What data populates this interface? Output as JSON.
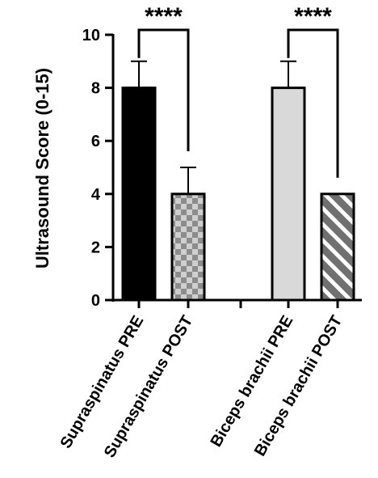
{
  "chart_data": {
    "type": "bar",
    "ylabel": "Ultrasound  Score (0-15)",
    "ylim": [
      0,
      10
    ],
    "yticks": [
      0,
      2,
      4,
      6,
      8,
      10
    ],
    "grid": false,
    "categories": [
      "Supraspinatus PRE",
      "Supraspinatus POST",
      "Biceps brachii PRE",
      "Biceps brachii POST"
    ],
    "values": [
      8,
      4,
      8,
      4
    ],
    "errors": [
      1,
      1,
      1,
      0
    ],
    "bar_styles": [
      {
        "fill": "#000000",
        "pattern": "solid"
      },
      {
        "fill": "#8c8c8c",
        "pattern": "checker"
      },
      {
        "fill": "#d9d9d9",
        "pattern": "solid"
      },
      {
        "fill": "#8c8c8c",
        "pattern": "diagonal-stripes"
      }
    ],
    "significance": [
      {
        "between": [
          0,
          1
        ],
        "label": "****"
      },
      {
        "between": [
          2,
          3
        ],
        "label": "****"
      }
    ]
  }
}
